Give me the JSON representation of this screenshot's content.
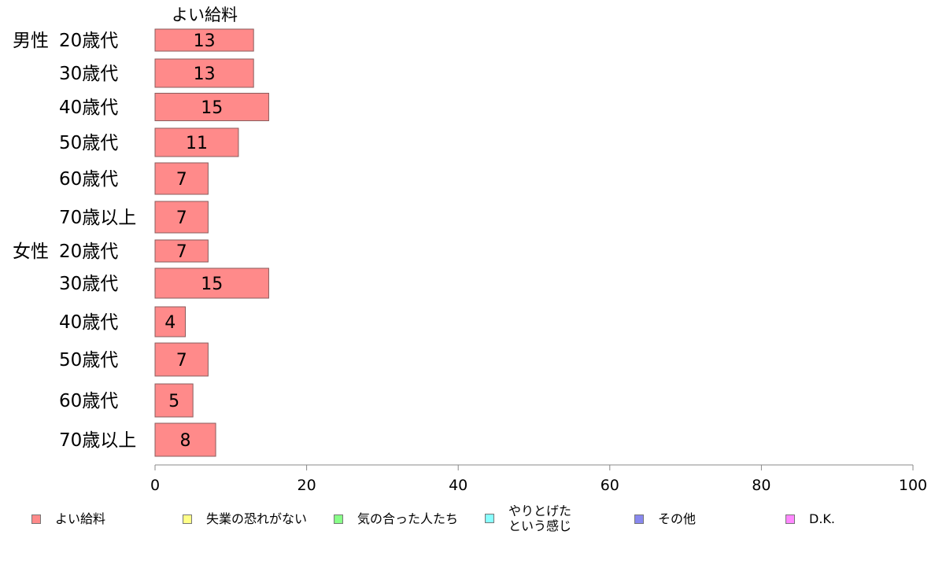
{
  "chart_data": {
    "type": "bar",
    "orientation": "horizontal",
    "column_header": "よい給料",
    "groups": [
      {
        "label": "男性",
        "rows": [
          {
            "label": "20歳代",
            "value": 13
          },
          {
            "label": "30歳代",
            "value": 13
          },
          {
            "label": "40歳代",
            "value": 15
          },
          {
            "label": "50歳代",
            "value": 11
          },
          {
            "label": "60歳代",
            "value": 7
          },
          {
            "label": "70歳以上",
            "value": 7
          }
        ]
      },
      {
        "label": "女性",
        "rows": [
          {
            "label": "20歳代",
            "value": 7
          },
          {
            "label": "30歳代",
            "value": 15
          },
          {
            "label": "40歳代",
            "value": 4
          },
          {
            "label": "50歳代",
            "value": 7
          },
          {
            "label": "60歳代",
            "value": 5
          },
          {
            "label": "70歳以上",
            "value": 8
          }
        ]
      }
    ],
    "xlim": [
      0,
      100
    ],
    "xticks": [
      0,
      20,
      40,
      60,
      80,
      100
    ],
    "grid": false,
    "legend_position": "bottom",
    "bar_color": "#ff8a8a",
    "legend": [
      {
        "label": "よい給料",
        "color": "#ff8a8a"
      },
      {
        "label": "失業の恐れがない",
        "color": "#ffff88"
      },
      {
        "label": "気の合った人たち",
        "color": "#88ff88"
      },
      {
        "label": "やりとげた\nという感じ",
        "color": "#88ffff"
      },
      {
        "label": "その他",
        "color": "#8888ee"
      },
      {
        "label": "D.K.",
        "color": "#ff88ff"
      }
    ]
  }
}
